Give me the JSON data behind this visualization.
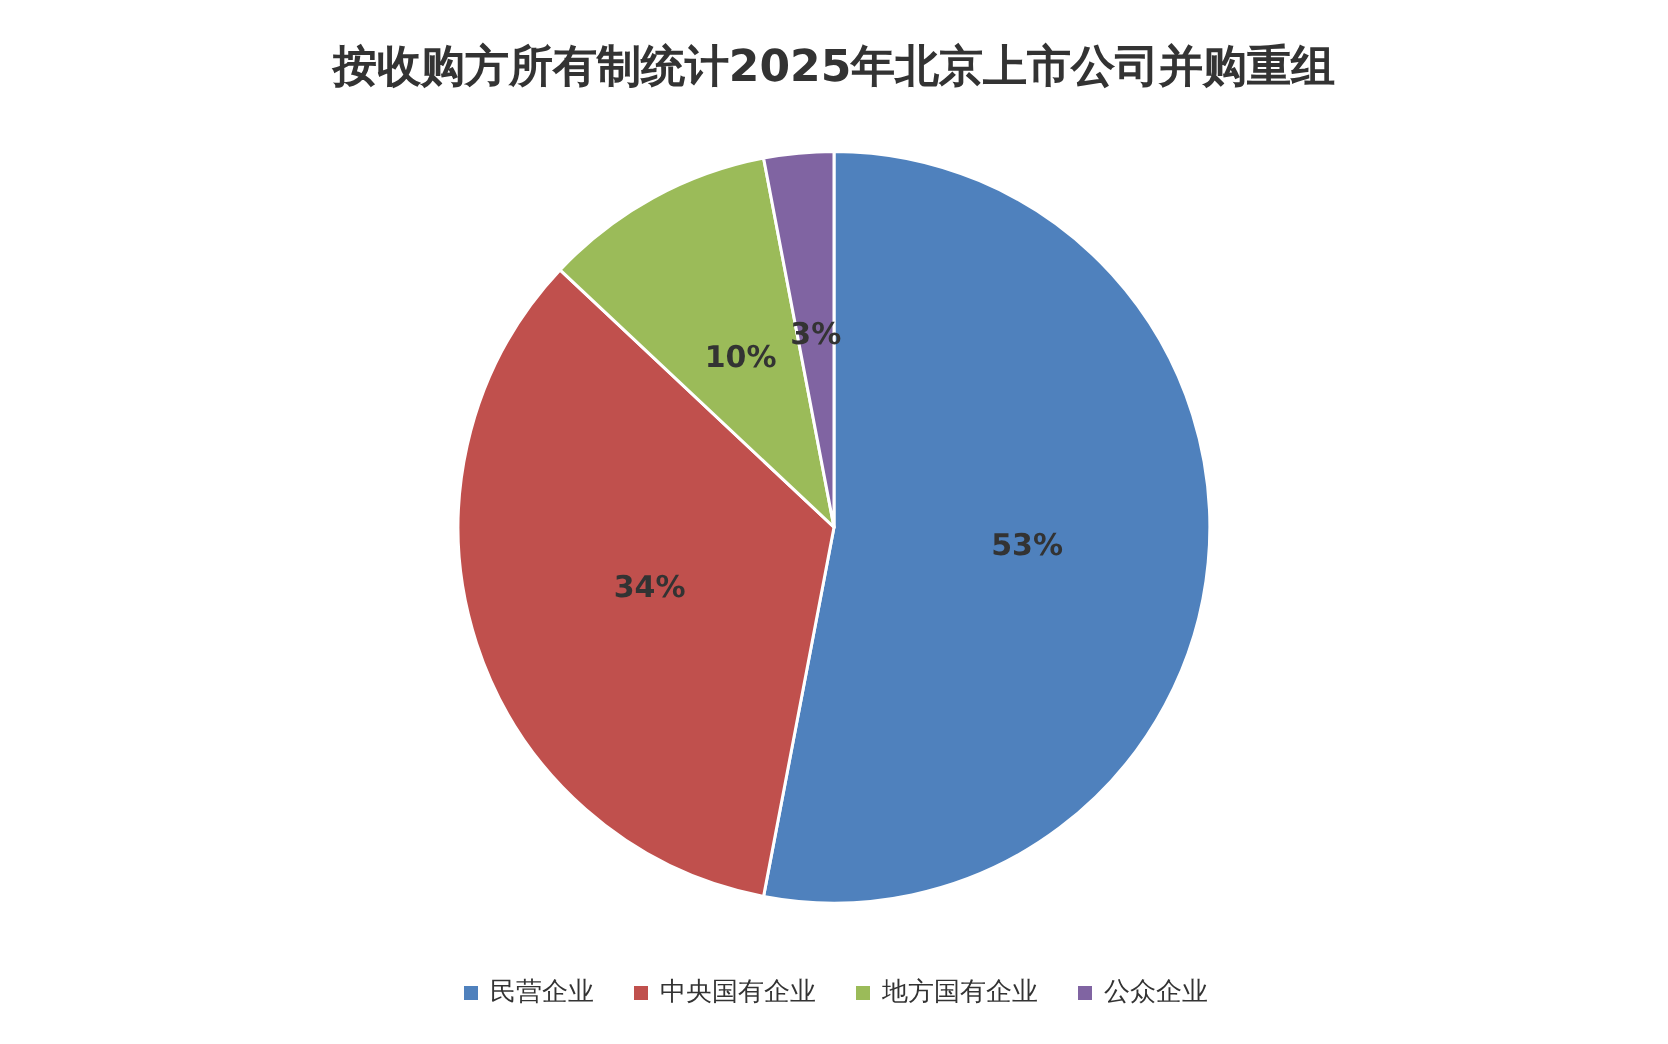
{
  "chart_data": {
    "type": "pie",
    "title": "按收购方所有制统计2025年北京上市公司并购重组",
    "categories": [
      "民营企业",
      "中央国有企业",
      "地方国有企业",
      "公众企业"
    ],
    "values": [
      53,
      34,
      10,
      3
    ],
    "value_labels": [
      "53%",
      "34%",
      "10%",
      "3%"
    ],
    "colors": [
      "#4f81bd",
      "#c0504d",
      "#9bbb59",
      "#8064a2"
    ],
    "legend": "bottom"
  }
}
